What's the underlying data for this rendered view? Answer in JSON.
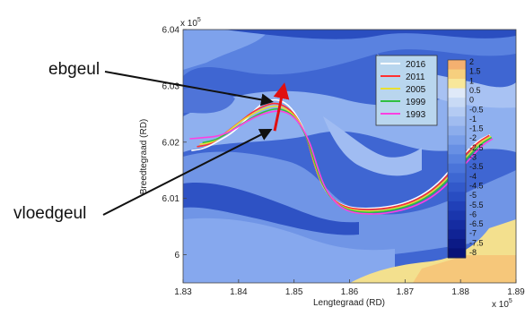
{
  "callouts": {
    "upper": "ebgeul",
    "lower": "vloedgeul"
  },
  "chart_data": {
    "type": "line",
    "title": "",
    "xlabel": "Lengtegraad (RD)",
    "ylabel": "Breedtegraad (RD)",
    "x_multiplier": "x 10",
    "x_multiplier_exp": "5",
    "y_multiplier": "x 10",
    "y_multiplier_exp": "5",
    "xlim": [
      1.83,
      1.89
    ],
    "ylim": [
      5.995,
      6.04
    ],
    "xticks": [
      1.83,
      1.84,
      1.85,
      1.86,
      1.87,
      1.88,
      1.89
    ],
    "xtick_labels": [
      "1.83",
      "1.84",
      "1.85",
      "1.86",
      "1.87",
      "1.88",
      "1.89"
    ],
    "yticks": [
      6.0,
      6.01,
      6.02,
      6.03,
      6.04
    ],
    "ytick_labels": [
      "6",
      "6.01",
      "6.02",
      "6.03",
      "6.04"
    ],
    "legend_position": "top-right",
    "series": [
      {
        "name": "2016",
        "color": "#ffffff",
        "x": [
          1.8315,
          1.834,
          1.8365,
          1.839,
          1.8415,
          1.844,
          1.8462,
          1.8485,
          1.8505,
          1.8522,
          1.8532,
          1.8545,
          1.8562,
          1.8585,
          1.8615,
          1.8655,
          1.8695,
          1.873,
          1.876,
          1.8785,
          1.881,
          1.8832,
          1.8853
        ],
        "y": [
          6.0185,
          6.0189,
          6.0203,
          6.0217,
          6.0242,
          6.0268,
          6.0277,
          6.0271,
          6.0248,
          6.0213,
          6.0175,
          6.0135,
          6.0105,
          6.0088,
          6.0082,
          6.0083,
          6.009,
          6.0105,
          6.0127,
          6.0155,
          6.0183,
          6.0203,
          6.0213
        ]
      },
      {
        "name": "2011",
        "color": "#ff3030",
        "x": [
          1.8325,
          1.835,
          1.8375,
          1.8402,
          1.8427,
          1.845,
          1.8467,
          1.8488,
          1.8507,
          1.8523,
          1.8533,
          1.8546,
          1.8564,
          1.8587,
          1.8617,
          1.8657,
          1.8697,
          1.8732,
          1.8762,
          1.8787,
          1.8812,
          1.8834,
          1.8852
        ],
        "y": [
          6.0192,
          6.0196,
          6.0215,
          6.0236,
          6.0255,
          6.0266,
          6.027,
          6.0262,
          6.0242,
          6.0209,
          6.0172,
          6.0133,
          6.0103,
          6.0086,
          6.008,
          6.0081,
          6.0088,
          6.0103,
          6.0125,
          6.0153,
          6.0181,
          6.0202,
          6.0212
        ]
      },
      {
        "name": "2005",
        "color": "#e8e030",
        "x": [
          1.833,
          1.8355,
          1.838,
          1.8405,
          1.843,
          1.8452,
          1.8469,
          1.849,
          1.8509,
          1.8525,
          1.8535,
          1.8548,
          1.8566,
          1.8589,
          1.8619,
          1.8659,
          1.8699,
          1.8734,
          1.8764,
          1.8789,
          1.8814,
          1.8836,
          1.8855
        ],
        "y": [
          6.0196,
          6.02,
          6.0218,
          6.0238,
          6.0253,
          6.0262,
          6.0265,
          6.0257,
          6.0238,
          6.0205,
          6.0168,
          6.013,
          6.01,
          6.0083,
          6.0077,
          6.0078,
          6.0086,
          6.0101,
          6.0123,
          6.015,
          6.0178,
          6.02,
          6.021
        ]
      },
      {
        "name": "1999",
        "color": "#30c040",
        "x": [
          1.8335,
          1.836,
          1.8385,
          1.841,
          1.8434,
          1.8455,
          1.8472,
          1.8492,
          1.851,
          1.8526,
          1.8537,
          1.855,
          1.8568,
          1.8591,
          1.8621,
          1.8661,
          1.8701,
          1.8736,
          1.8766,
          1.8791,
          1.8816,
          1.8838,
          1.8856
        ],
        "y": [
          6.0199,
          6.0204,
          6.0219,
          6.0235,
          6.0249,
          6.0257,
          6.026,
          6.0253,
          6.0234,
          6.0202,
          6.0165,
          6.0127,
          6.0098,
          6.0081,
          6.0075,
          6.0076,
          6.0084,
          6.0099,
          6.0121,
          6.0148,
          6.0176,
          6.0198,
          6.0208
        ]
      },
      {
        "name": "1993",
        "color": "#ff40e0",
        "x": [
          1.8312,
          1.8337,
          1.8362,
          1.8388,
          1.8413,
          1.8437,
          1.8458,
          1.8476,
          1.8495,
          1.8513,
          1.8529,
          1.854,
          1.8553,
          1.8571,
          1.8594,
          1.8624,
          1.8664,
          1.8704,
          1.8739,
          1.8769,
          1.8794,
          1.8819,
          1.8841,
          1.8858
        ],
        "y": [
          6.0206,
          6.0208,
          6.021,
          6.022,
          6.0236,
          6.0248,
          6.0254,
          6.0256,
          6.0249,
          6.023,
          6.0198,
          6.0162,
          6.0124,
          6.0095,
          6.0078,
          6.0072,
          6.0073,
          6.0081,
          6.0096,
          6.0118,
          6.0145,
          6.0173,
          6.0196,
          6.0206
        ]
      }
    ],
    "colorbar": {
      "labels": [
        "2",
        "1.5",
        "1",
        "0.5",
        "0",
        "-0.5",
        "-1",
        "-1.5",
        "-2",
        "-2.5",
        "-3",
        "-3.5",
        "-4",
        "-4.5",
        "-5",
        "-5.5",
        "-6",
        "-6.5",
        "-7",
        "-7.5",
        "-8"
      ],
      "colors": [
        "#f4b070",
        "#f6cf7e",
        "#f8e79a",
        "#dfe9f8",
        "#c8daf5",
        "#b4cbf3",
        "#a0bcf0",
        "#8cadec",
        "#7a9fe9",
        "#6890e4",
        "#5882df",
        "#4a74d9",
        "#3d67d2",
        "#3259ca",
        "#284dc2",
        "#2040b8",
        "#1a36ad",
        "#152ca1",
        "#102395",
        "#0b1a86",
        "#071278"
      ]
    },
    "annotations": [
      {
        "text": "ebgeul",
        "points_to": [
          1.846,
          6.0272
        ]
      },
      {
        "text": "vloedgeul",
        "points_to": [
          1.8458,
          6.0222
        ]
      }
    ],
    "arrow": {
      "color": "#e01010",
      "from": [
        1.8465,
        6.022
      ],
      "to": [
        1.848,
        6.0292
      ]
    }
  }
}
